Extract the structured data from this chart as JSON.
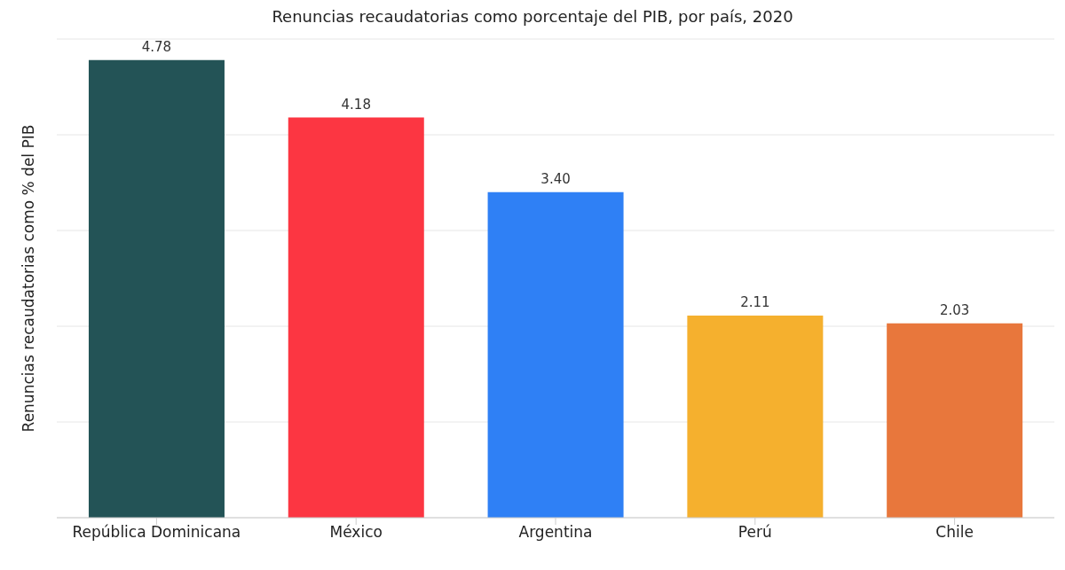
{
  "chart_data": {
    "type": "bar",
    "title": "Renuncias recaudatorias como porcentaje del PIB, por país, 2020",
    "ylabel": "Renuncias recaudatorias como % del PIB",
    "categories": [
      "República Dominicana",
      "México",
      "Argentina",
      "Perú",
      "Chile"
    ],
    "values": [
      4.78,
      4.18,
      3.4,
      2.11,
      2.03
    ],
    "colors": [
      "#235356",
      "#fc3642",
      "#2f80f5",
      "#f5b02e",
      "#e8773c"
    ],
    "value_labels": [
      "4.78",
      "4.18",
      "3.40",
      "2.11",
      "2.03"
    ],
    "ylim": [
      0,
      5
    ],
    "yticks": [
      {
        "value": 0,
        "label": null
      },
      {
        "value": 1,
        "label": null
      },
      {
        "value": 2,
        "label": null
      },
      {
        "value": 3,
        "label": null
      },
      {
        "value": 4,
        "label": null
      },
      {
        "value": 5,
        "label": null
      }
    ],
    "grid": "y",
    "tick_labels": "x"
  }
}
